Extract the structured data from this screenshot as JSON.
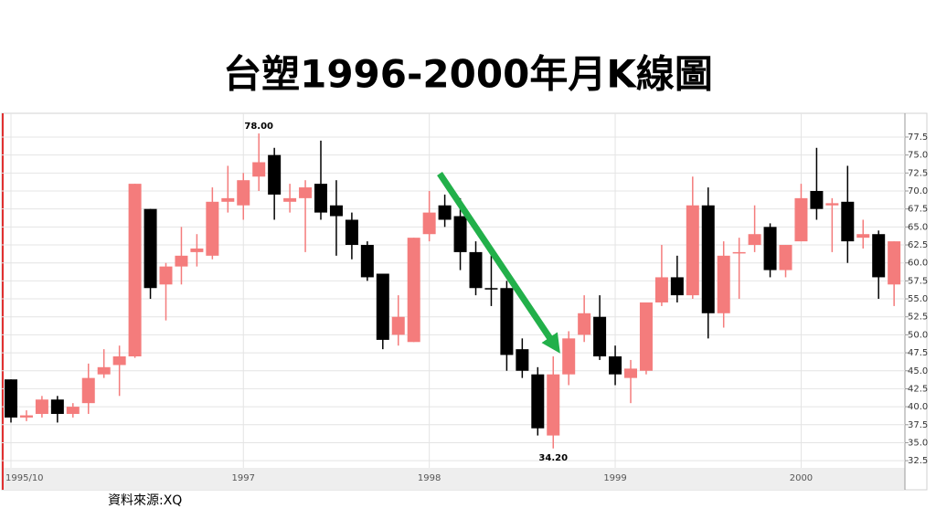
{
  "chart_data": {
    "type": "candlestick",
    "title": "台塑1996-2000年月K線圖",
    "source": "資料來源:XQ",
    "max_label": "78.00",
    "min_label": "34.20",
    "categories": [
      "1995/10",
      null,
      null,
      null,
      null,
      null,
      null,
      null,
      null,
      null,
      null,
      null,
      null,
      null,
      null,
      "1997",
      null,
      null,
      null,
      null,
      null,
      null,
      null,
      null,
      null,
      null,
      null,
      "1998",
      null,
      null,
      null,
      null,
      null,
      null,
      null,
      null,
      null,
      null,
      null,
      "1999",
      null,
      null,
      null,
      null,
      null,
      null,
      null,
      null,
      null,
      null,
      null,
      "2000",
      null,
      null,
      null,
      null,
      null,
      null
    ],
    "open": [
      43.8,
      38.5,
      39,
      41,
      39,
      40.5,
      44.5,
      45.8,
      47,
      67.5,
      57,
      59.5,
      61.5,
      61,
      68.5,
      68,
      72,
      75,
      68.5,
      69,
      71,
      68,
      66,
      62.5,
      58.5,
      50,
      49,
      64,
      68,
      66.5,
      61.5,
      56.5,
      56.5,
      48,
      44.5,
      36,
      44.5,
      50,
      52.5,
      47,
      44,
      45,
      54.5,
      58,
      55.5,
      68,
      53,
      61.5,
      62.5,
      65,
      59,
      63,
      70,
      68,
      68.5,
      63.5,
      64,
      57
    ],
    "high": [
      43.8,
      39.5,
      41.5,
      41.5,
      40.5,
      46,
      48,
      48.5,
      71,
      67.5,
      60,
      65,
      64,
      70.5,
      73.5,
      72.5,
      78,
      76,
      71,
      71.5,
      77,
      71.5,
      67,
      63,
      58.5,
      55.5,
      63.5,
      70,
      69.5,
      69,
      63,
      61,
      57.5,
      49.5,
      45.5,
      47,
      50.5,
      55.5,
      55.5,
      48.5,
      46.5,
      54.5,
      62.5,
      61,
      72,
      70.5,
      63,
      63.5,
      68,
      65.5,
      62.5,
      71,
      76,
      69,
      73.5,
      66,
      64.5,
      63
    ],
    "low": [
      37.8,
      38,
      38.5,
      37.8,
      38.5,
      39,
      44,
      41.5,
      46.8,
      55,
      52,
      57,
      59.5,
      60.5,
      67,
      66,
      70,
      66,
      67,
      61.5,
      66,
      61,
      60.5,
      57.5,
      48,
      48.5,
      49,
      63,
      65,
      59,
      55.5,
      54,
      45,
      44,
      36,
      34.2,
      43,
      49,
      46.5,
      43,
      40.5,
      44.5,
      54,
      54.5,
      55,
      49.5,
      51,
      55,
      61.5,
      58,
      58,
      63,
      66,
      61.5,
      60,
      62,
      55,
      54
    ],
    "close": [
      38.5,
      38.8,
      41,
      39,
      40,
      44,
      45.5,
      47,
      71,
      56.5,
      59.5,
      61,
      62,
      68.5,
      69,
      71.5,
      74,
      69.5,
      69,
      70.5,
      67,
      66.5,
      62.5,
      58,
      49.3,
      52.5,
      63.5,
      67,
      66,
      61.5,
      56.5,
      56.3,
      47.2,
      45,
      37,
      44.5,
      49.5,
      53,
      47,
      44.5,
      45.3,
      54.5,
      58,
      55.5,
      68,
      53,
      61,
      61.5,
      64,
      59,
      62.5,
      69,
      67.5,
      68.3,
      63,
      64,
      58,
      63
    ],
    "up_color": "#f47c7c",
    "down_color": "#000000",
    "ylim": [
      31.5,
      80.8
    ],
    "yticks": [
      32.5,
      {
        "value": 35,
        "label": "35.0"
      },
      37.5,
      {
        "value": 40,
        "label": "40.0"
      },
      42.5,
      {
        "value": 45,
        "label": "45.0"
      },
      47.5,
      {
        "value": 50,
        "label": "50.0"
      },
      52.5,
      {
        "value": 55,
        "label": "55.0"
      },
      57.5,
      {
        "value": 60,
        "label": "60.0"
      },
      62.5,
      {
        "value": 65,
        "label": "65.0"
      },
      67.5,
      {
        "value": 70,
        "label": "70.0"
      },
      72.5,
      {
        "value": 75,
        "label": "75.0"
      },
      77.5
    ],
    "grid": true
  }
}
